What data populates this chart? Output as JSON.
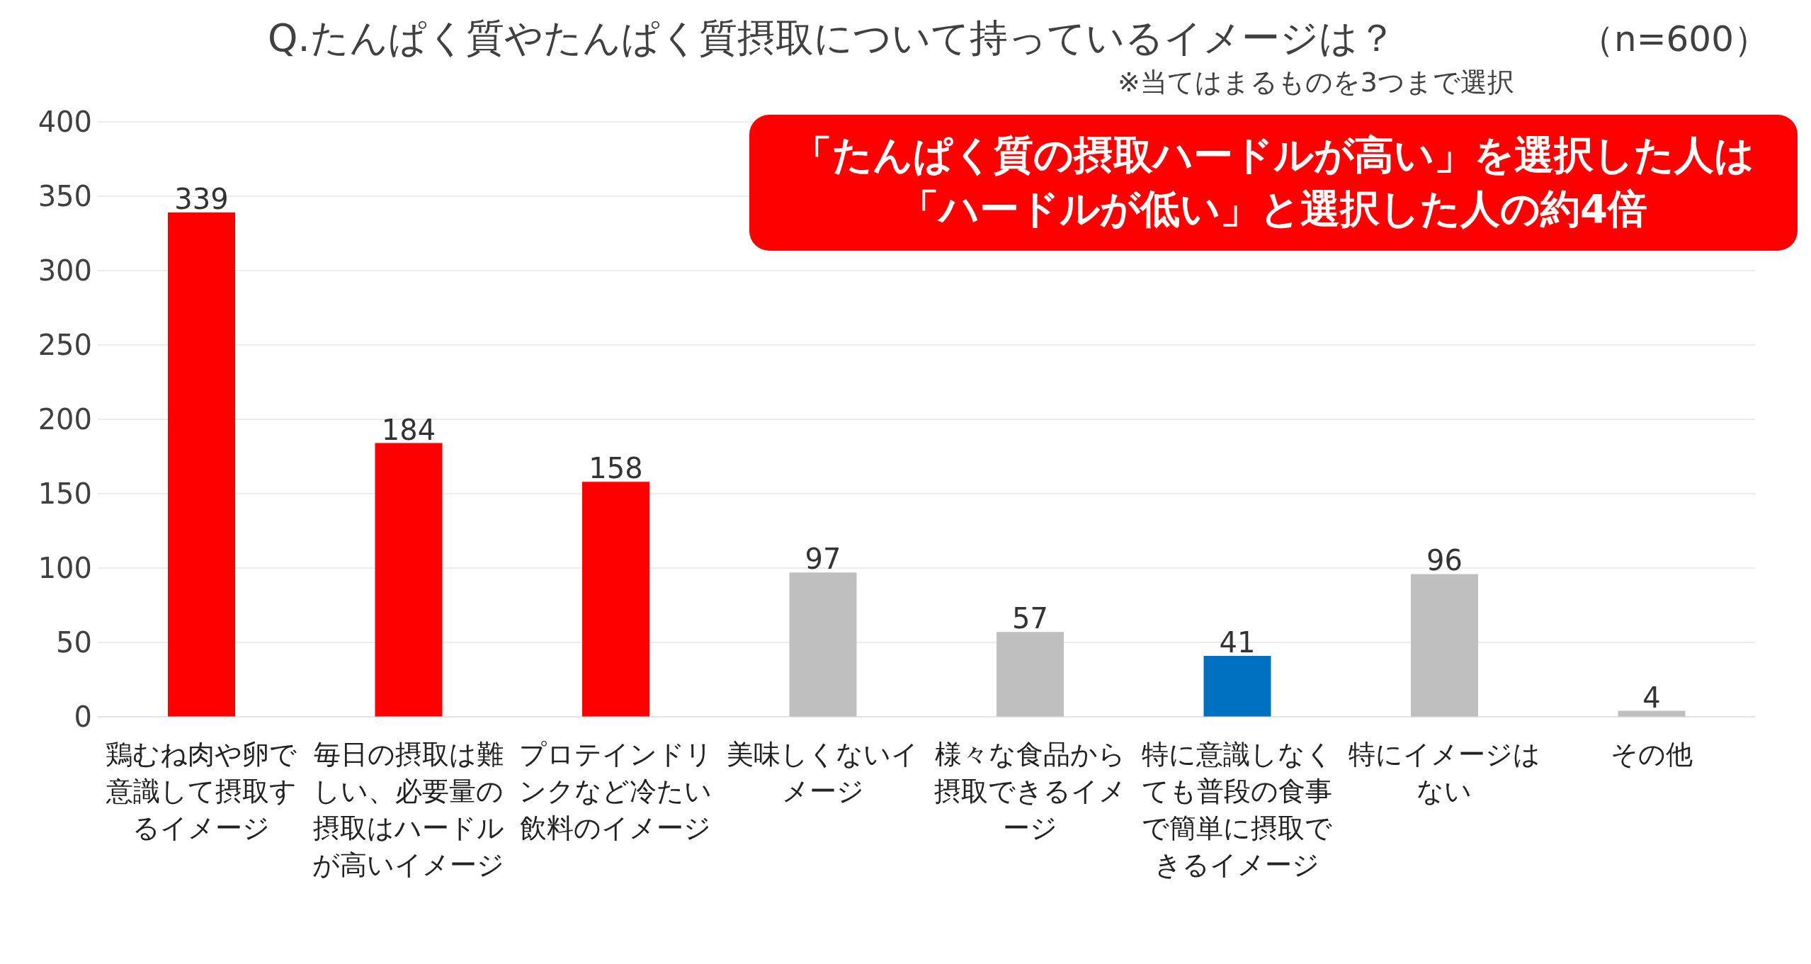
{
  "chart_data": {
    "type": "bar",
    "title": "Q.たんぱく質やたんぱく質摂取について持っているイメージは？",
    "subtitle": "※当てはまるものを3つまで選択",
    "categories": [
      "鶏むね肉や卵で意識して摂取するイメージ",
      "毎日の摂取は難しい、必要量の摂取はハードルが高いイメージ",
      "プロテインドリンクなど冷たい飲料のイメージ",
      "美味しくないイメージ",
      "様々な食品から摂取できるイメージ",
      "特に意識しなくても普段の食事で簡単に摂取できるイメージ",
      "特にイメージはない",
      "その他"
    ],
    "values": [
      339,
      184,
      158,
      97,
      57,
      41,
      96,
      4
    ],
    "colors": [
      "#ff0000",
      "#ff0000",
      "#ff0000",
      "#bfbfbf",
      "#bfbfbf",
      "#0070c0",
      "#bfbfbf",
      "#bfbfbf"
    ],
    "ylim": [
      0,
      400
    ],
    "yticks": [
      0,
      50,
      100,
      150,
      200,
      250,
      300,
      350,
      400
    ],
    "grid": "y",
    "legend": false,
    "data_labels": true,
    "annotations": [
      "（n=600）",
      "「たんぱく質の摂取ハードルが高い」を選択した人は「ハードルが低い」と選択した人の約4倍"
    ]
  }
}
